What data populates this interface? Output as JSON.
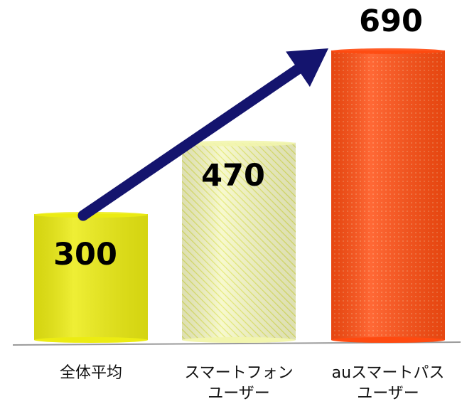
{
  "chart_data": {
    "type": "bar",
    "categories": [
      {
        "line1": "全体平均",
        "line2": ""
      },
      {
        "line1": "スマートフォン",
        "line2": "ユーザー"
      },
      {
        "line1": "auスマートパス",
        "line2": "ユーザー"
      }
    ],
    "values": [
      300,
      470,
      690
    ],
    "value_labels": [
      "300",
      "470",
      "690"
    ],
    "bar_colors": [
      "#ecec12",
      "#f2f5ae",
      "#ff4a10"
    ],
    "arrow_color": "#14146e",
    "grid": false,
    "legend": "none",
    "title": "",
    "xlabel": "",
    "ylabel": ""
  }
}
